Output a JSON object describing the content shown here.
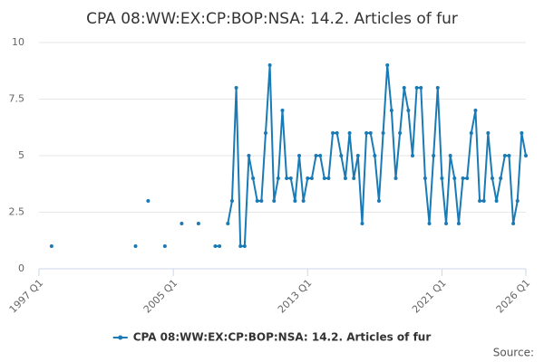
{
  "chart_data": {
    "type": "line",
    "title": "CPA 08:WW:EX:CP:BOP:NSA: 14.2. Articles of fur",
    "x": [
      1997,
      1997.25,
      1997.5,
      1997.75,
      1998,
      1998.25,
      1998.5,
      1998.75,
      1999,
      1999.25,
      1999.5,
      1999.75,
      2000,
      2000.25,
      2000.5,
      2000.75,
      2001,
      2001.25,
      2001.5,
      2001.75,
      2002,
      2002.25,
      2002.5,
      2002.75,
      2003,
      2003.25,
      2003.5,
      2003.75,
      2004,
      2004.25,
      2004.5,
      2004.75,
      2005,
      2005.25,
      2005.5,
      2005.75,
      2006,
      2006.25,
      2006.5,
      2006.75,
      2007,
      2007.25,
      2007.5,
      2007.75,
      2008,
      2008.25,
      2008.5,
      2008.75,
      2009,
      2009.25,
      2009.5,
      2009.75,
      2010,
      2010.25,
      2010.5,
      2010.75,
      2011,
      2011.25,
      2011.5,
      2011.75,
      2012,
      2012.25,
      2012.5,
      2012.75,
      2013,
      2013.25,
      2013.5,
      2013.75,
      2014,
      2014.25,
      2014.5,
      2014.75,
      2015,
      2015.25,
      2015.5,
      2015.75,
      2016,
      2016.25,
      2016.5,
      2016.75,
      2017,
      2017.25,
      2017.5,
      2017.75,
      2018,
      2018.25,
      2018.5,
      2018.75,
      2019,
      2019.25,
      2019.5,
      2019.75,
      2020,
      2020.25,
      2020.5,
      2020.75,
      2021,
      2021.25,
      2021.5,
      2021.75,
      2022,
      2022.25,
      2022.5,
      2022.75,
      2023,
      2023.25,
      2023.5,
      2023.75,
      2024,
      2024.25,
      2024.5,
      2024.75,
      2025,
      2025.25,
      2025.5,
      2025.75,
      2026
    ],
    "series": [
      {
        "name": "CPA 08:WW:EX:CP:BOP:NSA: 14.2. Articles of fur",
        "color": "#1a7ab5",
        "values": [
          null,
          null,
          null,
          1,
          null,
          null,
          null,
          null,
          null,
          null,
          null,
          null,
          null,
          null,
          null,
          null,
          null,
          null,
          null,
          null,
          null,
          null,
          null,
          1,
          null,
          null,
          3,
          null,
          null,
          null,
          1,
          null,
          null,
          null,
          2,
          null,
          null,
          null,
          2,
          null,
          null,
          null,
          1,
          1,
          null,
          2,
          3,
          8,
          1,
          1,
          5,
          4,
          3,
          3,
          6,
          9,
          3,
          4,
          7,
          4,
          4,
          3,
          5,
          3,
          4,
          4,
          5,
          5,
          4,
          4,
          6,
          6,
          5,
          4,
          6,
          4,
          5,
          2,
          6,
          6,
          5,
          3,
          6,
          9,
          7,
          4,
          6,
          8,
          7,
          5,
          8,
          8,
          4,
          2,
          5,
          8,
          4,
          2,
          5,
          4,
          2,
          4,
          4,
          6,
          7,
          3,
          3,
          6,
          4,
          3,
          4,
          5,
          5,
          2,
          3,
          6,
          5
        ]
      }
    ],
    "xlim": [
      1997,
      2026
    ],
    "xticks": [
      {
        "value": 1997,
        "label": "1997 Q1"
      },
      {
        "value": 2005,
        "label": "2005 Q1"
      },
      {
        "value": 2013,
        "label": "2013 Q1"
      },
      {
        "value": 2021,
        "label": "2021 Q1"
      },
      {
        "value": 2026,
        "label": "2026 Q1"
      }
    ],
    "ylim": [
      0,
      10
    ],
    "yticks": [
      0,
      2.5,
      5,
      7.5,
      10
    ],
    "grid": true,
    "legend": "bottom",
    "source": "Source:"
  }
}
